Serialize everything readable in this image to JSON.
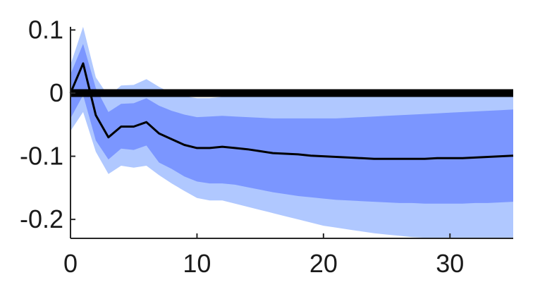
{
  "chart_data": {
    "type": "line",
    "title": "",
    "xlabel": "",
    "ylabel": "",
    "xlim": [
      0,
      35
    ],
    "ylim": [
      -0.23,
      0.105
    ],
    "x_ticks": [
      0,
      10,
      20,
      30
    ],
    "x_tick_labels": [
      "0",
      "10",
      "20",
      "30"
    ],
    "y_ticks": [
      0.1,
      0,
      -0.1,
      -0.2
    ],
    "y_tick_labels": [
      "0.1",
      "0",
      "-0.1",
      "-0.2"
    ],
    "grid": false,
    "legend": "none",
    "reference_line": {
      "y": 0,
      "color": "#000000"
    },
    "x": [
      0,
      1,
      2,
      3,
      4,
      5,
      6,
      7,
      8,
      9,
      10,
      11,
      12,
      13,
      14,
      15,
      16,
      17,
      18,
      19,
      20,
      21,
      22,
      23,
      24,
      25,
      26,
      27,
      28,
      29,
      30,
      31,
      32,
      33,
      34,
      35
    ],
    "series": [
      {
        "role": "median",
        "color": "#000000",
        "values": [
          0.0,
          0.047,
          -0.035,
          -0.07,
          -0.053,
          -0.053,
          -0.046,
          -0.064,
          -0.073,
          -0.082,
          -0.087,
          -0.087,
          -0.085,
          -0.087,
          -0.089,
          -0.092,
          -0.095,
          -0.096,
          -0.097,
          -0.099,
          -0.1,
          -0.101,
          -0.102,
          -0.103,
          -0.104,
          -0.104,
          -0.104,
          -0.104,
          -0.104,
          -0.103,
          -0.103,
          -0.103,
          -0.102,
          -0.101,
          -0.1,
          -0.099
        ]
      },
      {
        "role": "outer-band",
        "color": "#b0c8ff",
        "lower": [
          -0.06,
          -0.03,
          -0.093,
          -0.128,
          -0.115,
          -0.118,
          -0.115,
          -0.13,
          -0.143,
          -0.155,
          -0.166,
          -0.17,
          -0.17,
          -0.175,
          -0.18,
          -0.185,
          -0.19,
          -0.195,
          -0.2,
          -0.205,
          -0.21,
          -0.213,
          -0.216,
          -0.219,
          -0.222,
          -0.224,
          -0.226,
          -0.228,
          -0.229,
          -0.23,
          -0.23,
          -0.23,
          -0.23,
          -0.23,
          -0.23,
          -0.23
        ],
        "upper": [
          0.045,
          0.105,
          0.025,
          -0.005,
          0.012,
          0.013,
          0.022,
          0.01,
          0.0,
          -0.005,
          -0.008,
          -0.008,
          -0.006,
          -0.006,
          -0.005,
          -0.005,
          -0.005,
          -0.005,
          -0.005,
          -0.005,
          -0.005,
          -0.005,
          -0.005,
          -0.005,
          -0.005,
          -0.005,
          -0.005,
          -0.005,
          -0.005,
          -0.005,
          -0.005,
          -0.005,
          -0.005,
          -0.005,
          -0.005,
          -0.005
        ]
      },
      {
        "role": "inner-band",
        "color": "#7b96ff",
        "lower": [
          -0.04,
          -0.003,
          -0.075,
          -0.105,
          -0.088,
          -0.09,
          -0.083,
          -0.11,
          -0.12,
          -0.132,
          -0.14,
          -0.143,
          -0.143,
          -0.145,
          -0.149,
          -0.153,
          -0.157,
          -0.16,
          -0.163,
          -0.165,
          -0.167,
          -0.169,
          -0.17,
          -0.171,
          -0.172,
          -0.173,
          -0.174,
          -0.174,
          -0.175,
          -0.175,
          -0.175,
          -0.175,
          -0.174,
          -0.174,
          -0.173,
          -0.172
        ],
        "upper": [
          0.03,
          0.078,
          0.008,
          -0.03,
          -0.017,
          -0.016,
          -0.008,
          -0.02,
          -0.028,
          -0.034,
          -0.038,
          -0.037,
          -0.036,
          -0.037,
          -0.038,
          -0.039,
          -0.04,
          -0.04,
          -0.04,
          -0.04,
          -0.04,
          -0.04,
          -0.039,
          -0.038,
          -0.037,
          -0.036,
          -0.035,
          -0.034,
          -0.033,
          -0.032,
          -0.031,
          -0.03,
          -0.029,
          -0.028,
          -0.027,
          -0.026
        ]
      }
    ]
  }
}
